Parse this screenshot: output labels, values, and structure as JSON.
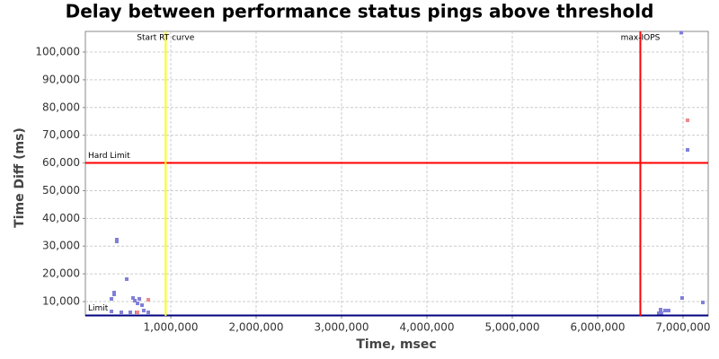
{
  "chart_data": {
    "type": "scatter",
    "title": "Delay between performance status pings above threshold",
    "x_label": "Time, msec",
    "y_label": "Time Diff (ms)",
    "xlim": [
      0,
      7295000
    ],
    "ylim": [
      4820,
      107450
    ],
    "xticks": [
      {
        "value": 1000000,
        "label": "1,000,000"
      },
      {
        "value": 2000000,
        "label": "2,000,000"
      },
      {
        "value": 3000000,
        "label": "3,000,000"
      },
      {
        "value": 4000000,
        "label": "4,000,000"
      },
      {
        "value": 5000000,
        "label": "5,000,000"
      },
      {
        "value": 6000000,
        "label": "6,000,000"
      },
      {
        "value": 7000000,
        "label": "7,000,000"
      }
    ],
    "yticks": [
      {
        "value": 10000,
        "label": "10,000"
      },
      {
        "value": 20000,
        "label": "20,000"
      },
      {
        "value": 30000,
        "label": "30,000"
      },
      {
        "value": 40000,
        "label": "40,000"
      },
      {
        "value": 50000,
        "label": "50,000"
      },
      {
        "value": 60000,
        "label": "60,000"
      },
      {
        "value": 70000,
        "label": "70,000"
      },
      {
        "value": 80000,
        "label": "80,000"
      },
      {
        "value": 90000,
        "label": "90,000"
      },
      {
        "value": 100000,
        "label": "100,000"
      }
    ],
    "grid": true,
    "series": [
      {
        "color": "#8080d8",
        "x": [
          305000,
          337000,
          337000,
          368000,
          368000,
          421000,
          484000,
          526000,
          558000,
          579000,
          611000,
          632000,
          663000,
          684000,
          737000,
          305000,
          600000,
          6979000,
          6989000,
          7053000,
          7232000,
          6716000,
          6737000,
          6789000,
          6811000,
          6832000,
          6747000
        ],
        "values": [
          10970,
          13240,
          12590,
          32340,
          31690,
          6120,
          18090,
          6120,
          11290,
          10320,
          9350,
          10970,
          8700,
          6760,
          6120,
          6440,
          6120,
          107000,
          11290,
          64710,
          9680,
          5790,
          7090,
          6760,
          6760,
          6760,
          5790
        ]
      },
      {
        "color": "#f08888",
        "x": [
          737000,
          611000,
          7053000
        ],
        "values": [
          10650,
          6120,
          75400
        ]
      }
    ],
    "vlines": [
      {
        "label": "Start RT curve",
        "x": 940000,
        "color": "#ffff00"
      },
      {
        "label": "max-IOPS",
        "x": 6500000,
        "color": "#ff0000"
      }
    ],
    "hlines": [
      {
        "label": "Hard Limit",
        "y": 60000,
        "color": "#ff0000"
      },
      {
        "label": "Limit",
        "y": 5000,
        "color": "#000080"
      }
    ]
  }
}
